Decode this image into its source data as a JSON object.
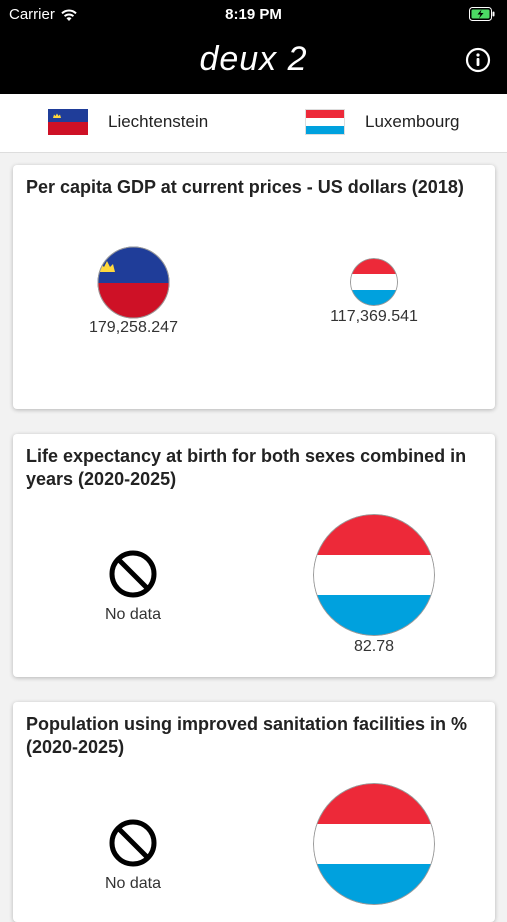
{
  "status": {
    "carrier": "Carrier",
    "time": "8:19 PM"
  },
  "nav": {
    "title": "deux 2"
  },
  "countries": [
    {
      "name": "Liechtenstein"
    },
    {
      "name": "Luxembourg"
    }
  ],
  "cards": [
    {
      "title": "Per capita GDP at current prices - US dollars (2018)",
      "left_value": "179,258.247",
      "right_value": "117,369.541"
    },
    {
      "title": "Life expectancy at birth for both sexes combined in years (2020-2025)",
      "left_value": "No data",
      "right_value": "82.78"
    },
    {
      "title": "Population using improved sanitation facilities in % (2020-2025)",
      "left_value": "No data"
    }
  ],
  "colors": {
    "li_blue": "#1f3d99",
    "li_red": "#ce1126",
    "lu_red": "#ed2939",
    "lu_blue": "#00a1de"
  }
}
